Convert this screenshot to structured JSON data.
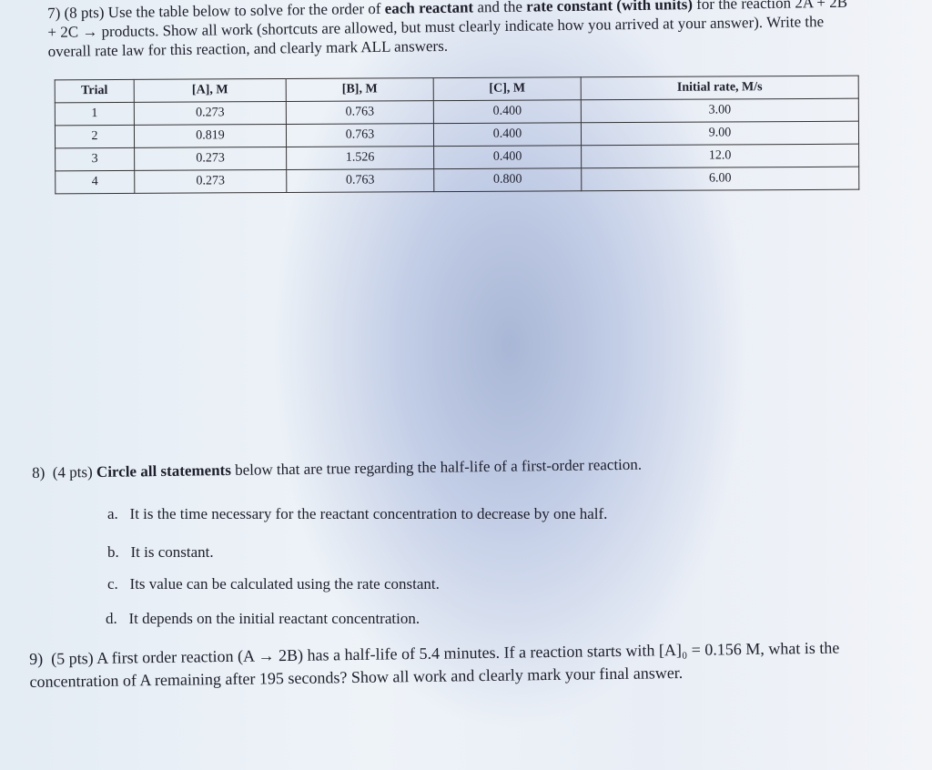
{
  "q7": {
    "number": "7)",
    "points": "(8 pts)",
    "text_1": "Use the table below to solve for the order of",
    "bold_1": "each reactant",
    "text_2": "and the",
    "bold_2": "rate constant (with units)",
    "text_3": "for the reaction 2A + 2B + 2C → products. Show all work (shortcuts are allowed, but must clearly indicate how you arrived at your answer). Write the overall rate law for this reaction, and clearly mark ALL answers."
  },
  "table": {
    "headers": [
      "Trial",
      "[A], M",
      "[B], M",
      "[C], M",
      "Initial rate, M/s"
    ],
    "rows": [
      [
        "1",
        "0.273",
        "0.763",
        "0.400",
        "3.00"
      ],
      [
        "2",
        "0.819",
        "0.763",
        "0.400",
        "9.00"
      ],
      [
        "3",
        "0.273",
        "1.526",
        "0.400",
        "12.0"
      ],
      [
        "4",
        "0.273",
        "0.763",
        "0.800",
        "6.00"
      ]
    ]
  },
  "q8": {
    "number": "8)",
    "points": "(4 pts)",
    "bold": "Circle all statements",
    "text": "below that are true regarding the half-life of a first-order reaction.",
    "options": [
      {
        "letter": "a.",
        "text": "It is the time necessary for the reactant concentration to decrease by one half."
      },
      {
        "letter": "b.",
        "text": "It is constant."
      },
      {
        "letter": "c.",
        "text": "Its value can be calculated using the rate constant."
      },
      {
        "letter": "d.",
        "text": "It depends on the initial reactant concentration."
      }
    ]
  },
  "q9": {
    "number": "9)",
    "text": "(5 pts) A first order reaction (A → 2B) has a half-life of 5.4 minutes.  If a reaction starts with [A]₀ = 0.156 M, what is the concentration of A remaining after 195 seconds?  Show all work and clearly mark your final answer."
  }
}
